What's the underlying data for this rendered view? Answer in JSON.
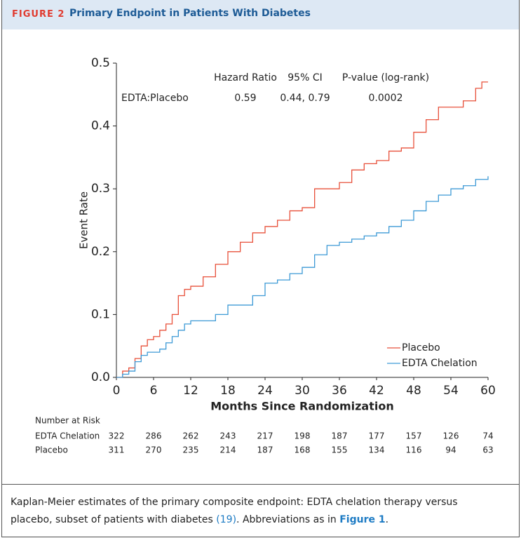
{
  "figure": {
    "label": "FIGURE 2",
    "title": "Primary Endpoint in Patients With Diabetes"
  },
  "chart_data": {
    "type": "step",
    "x_label": "Months Since Randomization",
    "y_label": "Event Rate",
    "xlim": [
      0,
      60
    ],
    "xticks": [
      0,
      6,
      12,
      18,
      24,
      30,
      36,
      42,
      48,
      54,
      60
    ],
    "ylim": [
      0,
      0.5
    ],
    "yticks": [
      {
        "value": 0,
        "label": "0.0"
      },
      0.1,
      0.2,
      0.3,
      0.4,
      0.5
    ],
    "x": [
      0,
      1,
      2,
      3,
      4,
      5,
      6,
      7,
      8,
      9,
      10,
      11,
      12,
      14,
      16,
      18,
      20,
      22,
      24,
      26,
      28,
      30,
      32,
      34,
      36,
      38,
      40,
      42,
      44,
      46,
      48,
      50,
      52,
      54,
      56,
      58,
      59,
      60
    ],
    "series": [
      {
        "name": "Placebo",
        "color": "#e8503a",
        "values": [
          0,
          0.01,
          0.015,
          0.03,
          0.05,
          0.06,
          0.065,
          0.075,
          0.085,
          0.1,
          0.13,
          0.14,
          0.145,
          0.16,
          0.18,
          0.2,
          0.215,
          0.23,
          0.24,
          0.25,
          0.265,
          0.27,
          0.3,
          0.3,
          0.31,
          0.33,
          0.34,
          0.345,
          0.36,
          0.365,
          0.39,
          0.41,
          0.43,
          0.43,
          0.44,
          0.46,
          0.47,
          0.47
        ]
      },
      {
        "name": "EDTA Chelation",
        "color": "#3d9ad6",
        "values": [
          0,
          0.005,
          0.01,
          0.025,
          0.035,
          0.04,
          0.04,
          0.045,
          0.055,
          0.065,
          0.075,
          0.085,
          0.09,
          0.09,
          0.1,
          0.115,
          0.115,
          0.13,
          0.15,
          0.155,
          0.165,
          0.175,
          0.195,
          0.21,
          0.215,
          0.22,
          0.225,
          0.23,
          0.24,
          0.25,
          0.265,
          0.28,
          0.29,
          0.3,
          0.305,
          0.315,
          0.315,
          0.32
        ]
      }
    ],
    "legend": "lower right",
    "stats": {
      "headers": [
        "Hazard Ratio",
        "95% CI",
        "P-value (log-rank)"
      ],
      "row_name": "EDTA:Placebo",
      "row": [
        "0.59",
        "0.44, 0.79",
        "0.0002"
      ]
    },
    "risk_table": {
      "title": "Number at Risk",
      "rows": [
        {
          "name": "EDTA Chelation",
          "values": [
            322,
            286,
            262,
            243,
            217,
            198,
            187,
            177,
            157,
            126,
            74
          ]
        },
        {
          "name": "Placebo",
          "values": [
            311,
            270,
            235,
            214,
            187,
            168,
            155,
            134,
            116,
            94,
            63
          ]
        }
      ]
    }
  },
  "caption": {
    "text": "Kaplan-Meier estimates of the primary composite endpoint: EDTA chelation therapy versus placebo, subset of patients with diabetes ",
    "ref": "(19)",
    "middle": ". Abbreviations as in ",
    "link": "Figure 1",
    "end": "."
  }
}
